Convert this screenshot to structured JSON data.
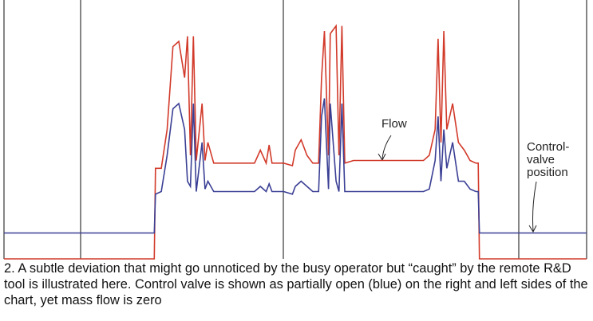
{
  "chart_data": {
    "type": "line",
    "caption": "2. A subtle deviation that might go unnoticed by the busy operator but “caught” by the remote R&D tool is illustrated here. Control valve is shown as partially open (blue) on the right and left sides of the chart, yet mass flow is zero",
    "x": [
      0,
      25.8,
      26,
      27,
      28,
      29,
      30,
      31,
      31.5,
      32,
      32.5,
      33,
      34,
      34.5,
      35,
      36,
      43,
      44,
      45,
      45.5,
      46,
      48,
      49.5,
      50,
      51,
      52,
      53,
      54,
      54.5,
      55,
      55.7,
      56,
      57,
      57.5,
      58,
      58.5,
      60,
      72,
      73,
      74,
      74.5,
      75,
      75.5,
      76,
      77,
      78,
      79,
      80,
      81,
      81.4,
      81.6,
      100
    ],
    "xlim": [
      0,
      100
    ],
    "ylim": [
      0,
      100
    ],
    "series": [
      {
        "name": "Flow",
        "color": "#d23a2a",
        "values": [
          0,
          0,
          35,
          35,
          50,
          82,
          84,
          70,
          86,
          40,
          86,
          38,
          60,
          38,
          45,
          37,
          37,
          42,
          37,
          44,
          37,
          37,
          36,
          42,
          46,
          40,
          37,
          37,
          70,
          88,
          40,
          87,
          90,
          40,
          90,
          37,
          38,
          38,
          40,
          50,
          85,
          45,
          88,
          50,
          60,
          45,
          42,
          38,
          37,
          37,
          0,
          0
        ]
      },
      {
        "name": "Control-valve position",
        "color": "#3a3f94",
        "values": [
          10,
          10,
          25,
          26,
          40,
          58,
          60,
          50,
          30,
          28,
          60,
          26,
          45,
          27,
          30,
          26,
          26,
          28,
          26,
          29,
          26,
          26,
          25,
          28,
          30,
          28,
          26,
          26,
          55,
          62,
          27,
          60,
          30,
          26,
          60,
          26,
          26,
          26,
          27,
          38,
          55,
          30,
          50,
          35,
          45,
          30,
          30,
          27,
          26,
          26,
          10,
          10
        ]
      }
    ]
  }
}
